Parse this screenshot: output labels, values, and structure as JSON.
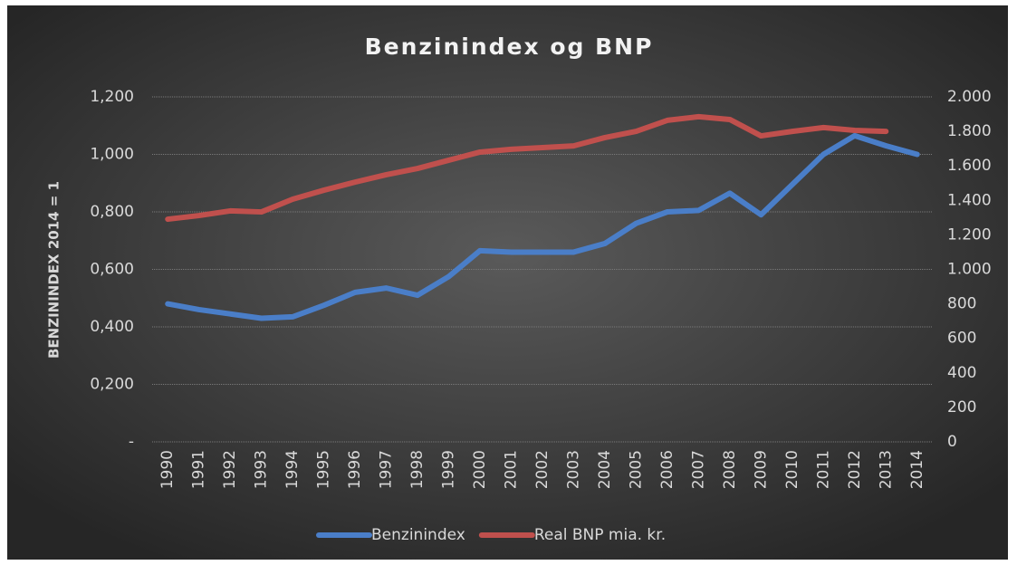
{
  "chart_data": {
    "type": "line",
    "title": "Benzinindex og BNP",
    "y_label": "BENZININDEX 2014 = 1",
    "categories": [
      "1990",
      "1991",
      "1992",
      "1993",
      "1994",
      "1995",
      "1996",
      "1997",
      "1998",
      "1999",
      "2000",
      "2001",
      "2002",
      "2003",
      "2004",
      "2005",
      "2006",
      "2007",
      "2008",
      "2009",
      "2010",
      "2011",
      "2012",
      "2013",
      "2014"
    ],
    "series": [
      {
        "name": "Benzinindex",
        "color": "#4a7ec8",
        "values": [
          0.48,
          0.46,
          0.445,
          0.43,
          0.435,
          0.475,
          0.52,
          0.535,
          0.51,
          0.575,
          0.665,
          0.66,
          0.66,
          0.66,
          0.69,
          0.76,
          0.8,
          0.805,
          0.865,
          0.79,
          0.895,
          1.0,
          1.065,
          1.03,
          1.0
        ]
      },
      {
        "name": "Real BNP mia. kr.",
        "color": "#c0504d",
        "axis": "y2",
        "values": [
          1291,
          1312,
          1339,
          1333,
          1407,
          1459,
          1506,
          1549,
          1585,
          1633,
          1680,
          1696,
          1706,
          1716,
          1764,
          1800,
          1864,
          1885,
          1869,
          1774,
          1800,
          1822,
          1806,
          1800,
          null
        ]
      }
    ],
    "ylim": [
      0,
      1.2
    ],
    "yticks": [
      {
        "value": 0,
        "label": "-"
      },
      {
        "value": 0.2,
        "label": "0,200"
      },
      {
        "value": 0.4,
        "label": "0,400"
      },
      {
        "value": 0.6,
        "label": "0,600"
      },
      {
        "value": 0.8,
        "label": "0,800"
      },
      {
        "value": 1.0,
        "label": "1,000"
      },
      {
        "value": 1.2,
        "label": "1,200"
      }
    ],
    "y2lim": [
      0,
      2000
    ],
    "y2ticks": [
      0,
      200,
      400,
      600,
      800,
      {
        "value": 1000,
        "label": "1.000"
      },
      {
        "value": 1200,
        "label": "1.200"
      },
      {
        "value": 1400,
        "label": "1.400"
      },
      {
        "value": 1600,
        "label": "1.600"
      },
      {
        "value": 1800,
        "label": "1.800"
      },
      {
        "value": 2000,
        "label": "2.000"
      }
    ],
    "grid": true,
    "legend": "bottom"
  }
}
